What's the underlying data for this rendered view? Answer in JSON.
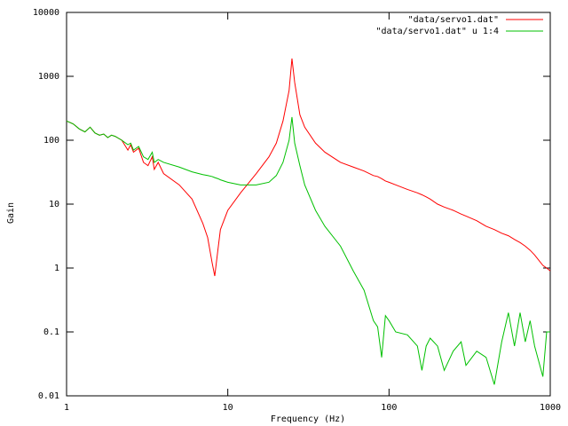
{
  "chart_data": {
    "type": "line",
    "xlabel": "Frequency (Hz)",
    "ylabel": "Gain",
    "xlog": true,
    "ylog": true,
    "legend": "top-right",
    "xlim": [
      1,
      1000
    ],
    "ylim": [
      0.01,
      10000
    ],
    "xticks": [
      1,
      10,
      100,
      1000
    ],
    "yticks": [
      0.01,
      0.1,
      1,
      10,
      100,
      1000,
      10000
    ],
    "x": [
      1,
      1.1,
      1.2,
      1.3,
      1.4,
      1.5,
      1.6,
      1.7,
      1.8,
      1.9,
      2,
      2.2,
      2.4,
      2.5,
      2.6,
      2.8,
      3,
      3.2,
      3.4,
      3.5,
      3.7,
      4,
      5,
      6,
      7,
      7.5,
      8,
      8.3,
      8.7,
      9,
      10,
      12,
      15,
      18,
      20,
      22,
      24,
      25,
      26,
      28,
      30,
      35,
      40,
      50,
      60,
      70,
      80,
      85,
      90,
      95,
      100,
      110,
      130,
      150,
      160,
      170,
      180,
      200,
      220,
      250,
      280,
      300,
      350,
      400,
      450,
      500,
      550,
      600,
      650,
      700,
      750,
      800,
      900,
      950,
      1000
    ],
    "series": [
      {
        "name": "\"data/servo1.dat\"",
        "color": "#ff0000",
        "values": [
          200,
          180,
          150,
          135,
          160,
          130,
          120,
          125,
          110,
          120,
          115,
          100,
          70,
          85,
          65,
          75,
          45,
          40,
          55,
          35,
          45,
          30,
          20,
          12,
          5,
          3,
          1.2,
          0.75,
          2,
          4,
          8,
          15,
          30,
          55,
          90,
          200,
          600,
          1900,
          800,
          250,
          160,
          90,
          65,
          45,
          38,
          33,
          28,
          27,
          25,
          23,
          22,
          20,
          17,
          15,
          14,
          13,
          12,
          10,
          9,
          8,
          7,
          6.5,
          5.5,
          4.5,
          4,
          3.5,
          3.2,
          2.8,
          2.5,
          2.2,
          1.9,
          1.6,
          1.1,
          1,
          0.9
        ]
      },
      {
        "name": "\"data/servo1.dat\" u 1:4",
        "color": "#00c000",
        "values": [
          200,
          180,
          150,
          135,
          160,
          130,
          120,
          125,
          110,
          120,
          115,
          100,
          85,
          90,
          70,
          80,
          55,
          50,
          65,
          45,
          50,
          45,
          38,
          32,
          29,
          28,
          27,
          26,
          25,
          24,
          22,
          20,
          20,
          22,
          28,
          45,
          100,
          230,
          90,
          40,
          20,
          8,
          4.5,
          2.2,
          0.9,
          0.45,
          0.15,
          0.12,
          0.04,
          0.18,
          0.15,
          0.1,
          0.09,
          0.06,
          0.025,
          0.06,
          0.08,
          0.06,
          0.025,
          0.05,
          0.07,
          0.03,
          0.05,
          0.04,
          0.015,
          0.07,
          0.2,
          0.06,
          0.2,
          0.07,
          0.15,
          0.06,
          0.02,
          0.1,
          0.1
        ]
      }
    ]
  }
}
